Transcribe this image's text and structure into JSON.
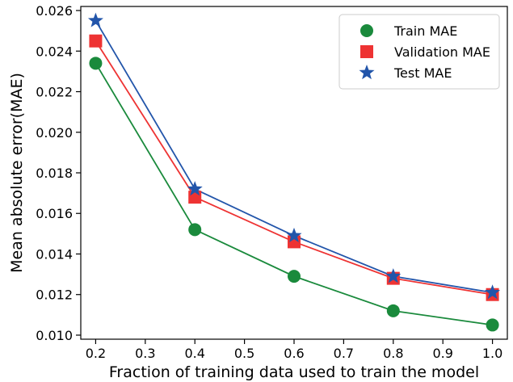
{
  "chart_data": {
    "type": "line",
    "xlabel": "Fraction of training data used to train the model",
    "ylabel": "Mean absolute error(MAE)",
    "xlim": [
      0.17,
      1.03
    ],
    "ylim": [
      0.0098,
      0.0262
    ],
    "xticks": [
      0.2,
      0.3,
      0.4,
      0.5,
      0.6,
      0.7,
      0.8,
      0.9,
      1.0
    ],
    "xtick_labels": [
      "0.2",
      "0.3",
      "0.4",
      "0.5",
      "0.6",
      "0.7",
      "0.8",
      "0.9",
      "1.0"
    ],
    "yticks": [
      0.01,
      0.012,
      0.014,
      0.016,
      0.018,
      0.02,
      0.022,
      0.024,
      0.026
    ],
    "ytick_labels": [
      "0.010",
      "0.012",
      "0.014",
      "0.016",
      "0.018",
      "0.020",
      "0.022",
      "0.024",
      "0.026"
    ],
    "grid": false,
    "legend_position": "top-right",
    "x": [
      0.2,
      0.4,
      0.6,
      0.8,
      1.0
    ],
    "series": [
      {
        "name": "Train MAE",
        "values": [
          0.0234,
          0.0152,
          0.0129,
          0.0112,
          0.0105
        ],
        "color": "#1a8a3c",
        "marker": "circle"
      },
      {
        "name": "Validation MAE",
        "values": [
          0.0245,
          0.0168,
          0.0146,
          0.0128,
          0.012
        ],
        "color": "#ee3333",
        "marker": "square"
      },
      {
        "name": "Test MAE",
        "values": [
          0.0255,
          0.0172,
          0.0149,
          0.0129,
          0.0121
        ],
        "color": "#2255aa",
        "marker": "star"
      }
    ]
  }
}
